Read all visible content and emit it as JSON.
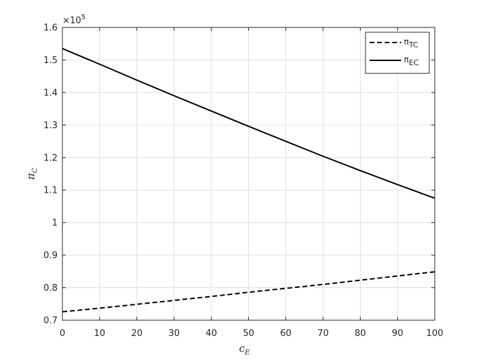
{
  "chart_data": {
    "type": "line",
    "x": [
      0,
      10,
      20,
      30,
      40,
      50,
      60,
      70,
      80,
      90,
      100
    ],
    "series": [
      {
        "name": "π",
        "subscript": "TC",
        "color": "#000000",
        "dash": true,
        "values": [
          0.726,
          0.737,
          0.749,
          0.761,
          0.773,
          0.786,
          0.798,
          0.81,
          0.823,
          0.836,
          0.849
        ]
      },
      {
        "name": "π",
        "subscript": "EC",
        "color": "#000000",
        "dash": false,
        "values": [
          1.535,
          1.487,
          1.438,
          1.39,
          1.343,
          1.296,
          1.25,
          1.204,
          1.16,
          1.117,
          1.075
        ]
      }
    ],
    "xlabel": {
      "text": "c",
      "subscript": "E"
    },
    "ylabel": {
      "text": "π",
      "subscript": "C"
    },
    "y_multiplier": {
      "text": "×10",
      "exponent": "5"
    },
    "xlim": [
      0,
      100
    ],
    "xticks": [
      0,
      10,
      20,
      30,
      40,
      50,
      60,
      70,
      80,
      90,
      100
    ],
    "ylim": [
      0.7,
      1.6
    ],
    "yticks": [
      0.7,
      0.8,
      0.9,
      1,
      1.1,
      1.2,
      1.3,
      1.4,
      1.5,
      1.6
    ],
    "grid": true,
    "legend": "top-right"
  }
}
